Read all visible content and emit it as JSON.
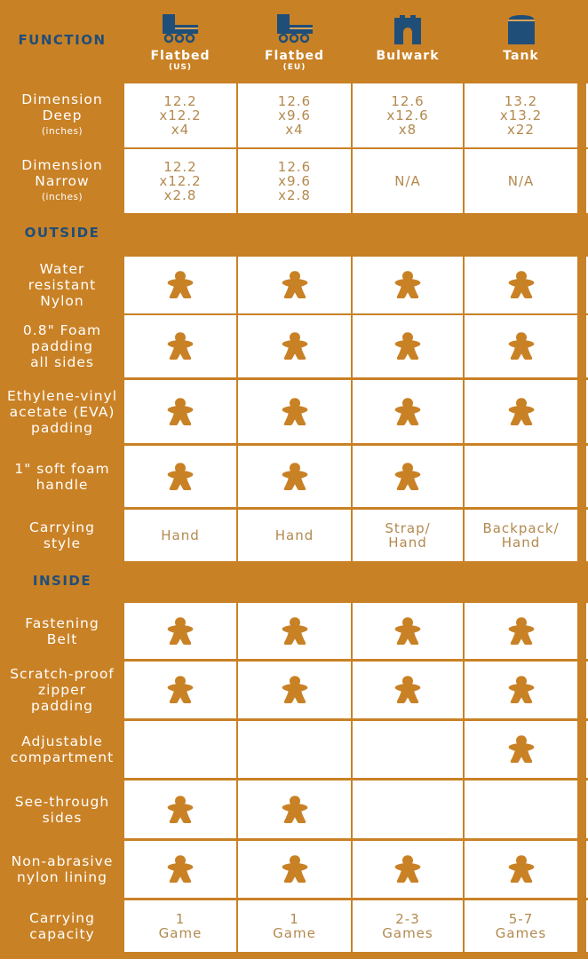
{
  "colors": {
    "background": "#C98125",
    "navy": "#1F4E79",
    "cell_text": "#B3894F",
    "meeple": "#C98125"
  },
  "header": {
    "function_label": "FUNCTION",
    "products": [
      {
        "name": "Flatbed",
        "region": "(US)",
        "icon": "flatbed-truck-icon"
      },
      {
        "name": "Flatbed",
        "region": "(EU)",
        "icon": "flatbed-truck-icon"
      },
      {
        "name": "Bulwark",
        "region": "",
        "icon": "bulwark-icon"
      },
      {
        "name": "Tank",
        "region": "",
        "icon": "tank-icon"
      }
    ]
  },
  "sections": [
    {
      "title": "",
      "rows": [
        {
          "label": [
            "Dimension",
            "Deep"
          ],
          "sub": "(inches)",
          "cells": [
            [
              "12.2",
              "x12.2",
              "x4"
            ],
            [
              "12.6",
              "x9.6",
              "x4"
            ],
            [
              "12.6",
              "x12.6",
              "x8"
            ],
            [
              "13.2",
              "x13.2",
              "x22"
            ]
          ]
        },
        {
          "label": [
            "Dimension",
            "Narrow"
          ],
          "sub": "(inches)",
          "cells": [
            [
              "12.2",
              "x12.2",
              "x2.8"
            ],
            [
              "12.6",
              "x9.6",
              "x2.8"
            ],
            [
              "N/A"
            ],
            [
              "N/A"
            ]
          ]
        }
      ]
    },
    {
      "title": "OUTSIDE",
      "rows": [
        {
          "label": [
            "Water",
            "resistant",
            "Nylon"
          ],
          "cells": [
            true,
            true,
            true,
            true
          ]
        },
        {
          "label": [
            "0.8\" Foam",
            "padding",
            "all sides"
          ],
          "cells": [
            true,
            true,
            true,
            true
          ]
        },
        {
          "label": [
            "Ethylene-vinyl",
            "acetate (EVA)",
            "padding"
          ],
          "cells": [
            true,
            true,
            true,
            true
          ]
        },
        {
          "label": [
            "1\" soft foam",
            "handle"
          ],
          "cells": [
            true,
            true,
            true,
            false
          ]
        },
        {
          "label": [
            "Carrying",
            "style"
          ],
          "cells": [
            [
              "Hand"
            ],
            [
              "Hand"
            ],
            [
              "Strap/",
              "Hand"
            ],
            [
              "Backpack/",
              "Hand"
            ]
          ]
        }
      ]
    },
    {
      "title": "INSIDE",
      "rows": [
        {
          "label": [
            "Fastening",
            "Belt"
          ],
          "cells": [
            true,
            true,
            true,
            true
          ]
        },
        {
          "label": [
            "Scratch-proof",
            "zipper",
            "padding"
          ],
          "cells": [
            true,
            true,
            true,
            true
          ]
        },
        {
          "label": [
            "Adjustable",
            "compartment"
          ],
          "cells": [
            false,
            false,
            false,
            true
          ]
        },
        {
          "label": [
            "See-through",
            "sides"
          ],
          "cells": [
            true,
            true,
            false,
            false
          ]
        },
        {
          "label": [
            "Non-abrasive",
            "nylon lining"
          ],
          "cells": [
            true,
            true,
            true,
            true
          ]
        },
        {
          "label": [
            "Carrying",
            "capacity"
          ],
          "cells": [
            [
              "1",
              "Game"
            ],
            [
              "1",
              "Game"
            ],
            [
              "2-3",
              "Games"
            ],
            [
              "5-7",
              "Games"
            ]
          ]
        }
      ]
    }
  ]
}
